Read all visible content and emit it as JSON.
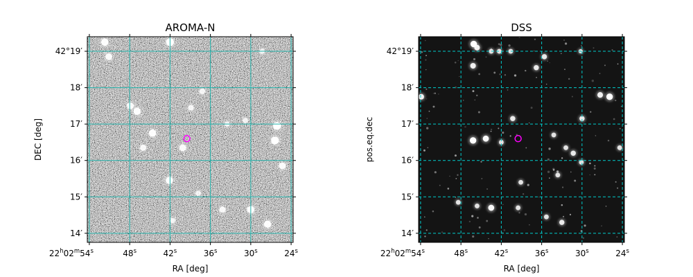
{
  "chart_data": [
    {
      "type": "image",
      "title": "AROMA-N",
      "xlabel": "RA [deg]",
      "ylabel": "DEC [deg]",
      "background": "noisy-gray",
      "x_ticks": [
        {
          "h": "22",
          "m": "02",
          "s": "54",
          "value": 54
        },
        {
          "value": 48,
          "s": "48"
        },
        {
          "value": 42,
          "s": "42"
        },
        {
          "value": 36,
          "s": "36"
        },
        {
          "value": 30,
          "s": "30"
        },
        {
          "value": 24,
          "s": "24"
        }
      ],
      "y_ticks": [
        {
          "deg": "42",
          "arcmin": "19",
          "value": 19
        },
        {
          "value": 18,
          "arcmin": "18"
        },
        {
          "value": 17,
          "arcmin": "17"
        },
        {
          "value": 16,
          "arcmin": "16"
        },
        {
          "value": 15,
          "arcmin": "15"
        },
        {
          "value": 14,
          "arcmin": "14"
        }
      ],
      "ra_range_s": [
        54.3,
        23.7
      ],
      "dec_range_arcmin": [
        13.75,
        19.4
      ],
      "grid": true,
      "grid_color": "#20b2aa",
      "grid_style": "solid",
      "marker": {
        "ra_s": 39.5,
        "dec_arcmin": 16.6,
        "color": "#ff00ff",
        "shape": "circle"
      },
      "sources": [
        {
          "ra_s": 51.7,
          "dec_arcmin": 19.25,
          "b": 0.9
        },
        {
          "ra_s": 42.0,
          "dec_arcmin": 19.25,
          "b": 1.0
        },
        {
          "ra_s": 51.1,
          "dec_arcmin": 18.85,
          "b": 0.8
        },
        {
          "ra_s": 47.9,
          "dec_arcmin": 17.5,
          "b": 0.8
        },
        {
          "ra_s": 46.9,
          "dec_arcmin": 17.35,
          "b": 0.9
        },
        {
          "ra_s": 38.9,
          "dec_arcmin": 17.45,
          "b": 0.6
        },
        {
          "ra_s": 37.2,
          "dec_arcmin": 17.9,
          "b": 0.6
        },
        {
          "ra_s": 44.6,
          "dec_arcmin": 16.75,
          "b": 0.9
        },
        {
          "ra_s": 46.0,
          "dec_arcmin": 16.35,
          "b": 0.7
        },
        {
          "ra_s": 40.1,
          "dec_arcmin": 16.35,
          "b": 0.8
        },
        {
          "ra_s": 42.1,
          "dec_arcmin": 15.45,
          "b": 0.9
        },
        {
          "ra_s": 26.1,
          "dec_arcmin": 16.95,
          "b": 1.0
        },
        {
          "ra_s": 26.4,
          "dec_arcmin": 16.55,
          "b": 1.0
        },
        {
          "ra_s": 25.3,
          "dec_arcmin": 15.85,
          "b": 0.8
        },
        {
          "ra_s": 34.2,
          "dec_arcmin": 14.65,
          "b": 0.7
        },
        {
          "ra_s": 30.0,
          "dec_arcmin": 14.65,
          "b": 0.9
        },
        {
          "ra_s": 27.5,
          "dec_arcmin": 14.25,
          "b": 0.9
        },
        {
          "ra_s": 37.8,
          "dec_arcmin": 15.1,
          "b": 0.5
        },
        {
          "ra_s": 33.5,
          "dec_arcmin": 17.0,
          "b": 0.5
        },
        {
          "ra_s": 30.8,
          "dec_arcmin": 17.1,
          "b": 0.5
        },
        {
          "ra_s": 28.3,
          "dec_arcmin": 19.0,
          "b": 0.5
        },
        {
          "ra_s": 41.6,
          "dec_arcmin": 14.35,
          "b": 0.5
        }
      ]
    },
    {
      "type": "image",
      "title": "DSS",
      "xlabel": "RA [deg]",
      "ylabel": "pos.eq.dec",
      "background": "dark-starfield",
      "x_ticks": [
        {
          "h": "22",
          "m": "02",
          "s": "54",
          "value": 54
        },
        {
          "value": 48,
          "s": "48"
        },
        {
          "value": 42,
          "s": "42"
        },
        {
          "value": 36,
          "s": "36"
        },
        {
          "value": 30,
          "s": "30"
        },
        {
          "value": 24,
          "s": "24"
        }
      ],
      "y_ticks": [
        {
          "deg": "42",
          "arcmin": "19",
          "value": 19
        },
        {
          "value": 18,
          "arcmin": "18"
        },
        {
          "value": 17,
          "arcmin": "17"
        },
        {
          "value": 16,
          "arcmin": "16"
        },
        {
          "value": 15,
          "arcmin": "15"
        },
        {
          "value": 14,
          "arcmin": "14"
        }
      ],
      "ra_range_s": [
        54.3,
        23.7
      ],
      "dec_range_arcmin": [
        13.75,
        19.4
      ],
      "grid": true,
      "grid_color": "#00cdcd",
      "grid_style": "dashed",
      "marker": {
        "ra_s": 39.5,
        "dec_arcmin": 16.6,
        "color": "#ff00ff",
        "shape": "circle"
      },
      "sources": [
        {
          "ra_s": 46.1,
          "dec_arcmin": 19.2,
          "b": 1.0
        },
        {
          "ra_s": 45.6,
          "dec_arcmin": 19.1,
          "b": 0.8
        },
        {
          "ra_s": 43.5,
          "dec_arcmin": 19.0,
          "b": 0.6
        },
        {
          "ra_s": 42.3,
          "dec_arcmin": 19.0,
          "b": 0.6
        },
        {
          "ra_s": 40.6,
          "dec_arcmin": 19.0,
          "b": 0.6
        },
        {
          "ra_s": 35.6,
          "dec_arcmin": 18.85,
          "b": 0.7
        },
        {
          "ra_s": 30.2,
          "dec_arcmin": 19.0,
          "b": 0.5
        },
        {
          "ra_s": 46.2,
          "dec_arcmin": 18.6,
          "b": 0.8
        },
        {
          "ra_s": 36.8,
          "dec_arcmin": 18.55,
          "b": 0.7
        },
        {
          "ra_s": 53.9,
          "dec_arcmin": 17.75,
          "b": 0.8
        },
        {
          "ra_s": 27.3,
          "dec_arcmin": 17.8,
          "b": 0.8
        },
        {
          "ra_s": 25.9,
          "dec_arcmin": 17.75,
          "b": 1.0
        },
        {
          "ra_s": 40.3,
          "dec_arcmin": 17.15,
          "b": 0.7
        },
        {
          "ra_s": 30.0,
          "dec_arcmin": 17.15,
          "b": 0.7
        },
        {
          "ra_s": 44.3,
          "dec_arcmin": 16.6,
          "b": 0.9
        },
        {
          "ra_s": 46.2,
          "dec_arcmin": 16.55,
          "b": 1.0
        },
        {
          "ra_s": 42.0,
          "dec_arcmin": 16.5,
          "b": 0.6
        },
        {
          "ra_s": 34.2,
          "dec_arcmin": 16.7,
          "b": 0.6
        },
        {
          "ra_s": 32.4,
          "dec_arcmin": 16.35,
          "b": 0.6
        },
        {
          "ra_s": 31.3,
          "dec_arcmin": 16.2,
          "b": 0.7
        },
        {
          "ra_s": 30.1,
          "dec_arcmin": 15.95,
          "b": 0.6
        },
        {
          "ra_s": 24.4,
          "dec_arcmin": 16.35,
          "b": 0.6
        },
        {
          "ra_s": 39.1,
          "dec_arcmin": 15.4,
          "b": 0.6
        },
        {
          "ra_s": 33.6,
          "dec_arcmin": 15.6,
          "b": 0.6
        },
        {
          "ra_s": 43.5,
          "dec_arcmin": 14.7,
          "b": 0.9
        },
        {
          "ra_s": 39.5,
          "dec_arcmin": 14.7,
          "b": 0.6
        },
        {
          "ra_s": 35.3,
          "dec_arcmin": 14.45,
          "b": 0.6
        },
        {
          "ra_s": 33.0,
          "dec_arcmin": 14.3,
          "b": 0.7
        },
        {
          "ra_s": 48.4,
          "dec_arcmin": 14.85,
          "b": 0.6
        },
        {
          "ra_s": 45.6,
          "dec_arcmin": 14.75,
          "b": 0.6
        }
      ]
    }
  ]
}
